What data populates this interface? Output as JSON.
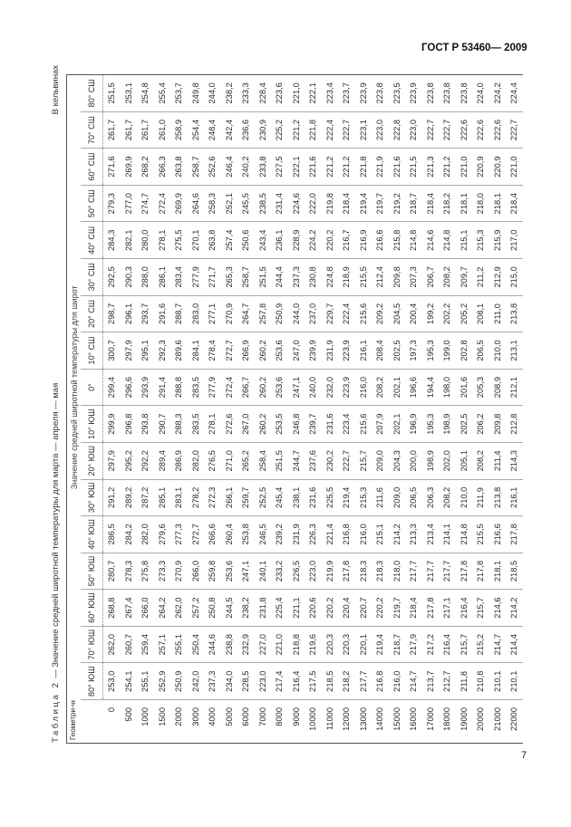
{
  "page": {
    "doc_id": "ГОСТ Р 53460— 2009",
    "page_number": "7"
  },
  "table": {
    "title_label": "Таблица 2",
    "title_text": " — Значение средней широтной температуры для марта — апреля — мая",
    "units": "В кельвинах",
    "height_header": "Геометри-ческая высота, м",
    "group_header": "Значение средней широтной температуры для широт",
    "columns": [
      "80° ЮШ",
      "70° ЮШ",
      "60° ЮШ",
      "50° ЮШ",
      "40° ЮШ",
      "30° ЮШ",
      "20° ЮШ",
      "10° ЮШ",
      "0°",
      "10° СШ",
      "20° СШ",
      "30° СШ",
      "40° СШ",
      "50° СШ",
      "60° СШ",
      "70° СШ",
      "80° СШ"
    ],
    "rows": [
      {
        "h": "0",
        "v": [
          "253,0",
          "262,0",
          "268,8",
          "280,7",
          "286,5",
          "291,2",
          "297,9",
          "299,9",
          "299,4",
          "300,7",
          "298,7",
          "292,5",
          "284,3",
          "279,3",
          "271,6",
          "261,7",
          "251,5"
        ]
      },
      {
        "h": "500",
        "v": [
          "254,1",
          "260,7",
          "267,4",
          "278,3",
          "284,2",
          "289,2",
          "295,2",
          "296,8",
          "296,6",
          "297,9",
          "296,1",
          "290,3",
          "282,1",
          "277,0",
          "269,9",
          "261,7",
          "253,1"
        ]
      },
      {
        "h": "1000",
        "v": [
          "255,1",
          "259,4",
          "266,0",
          "275,8",
          "282,0",
          "287,2",
          "292,2",
          "293,8",
          "293,9",
          "295,1",
          "293,7",
          "288,0",
          "280,0",
          "274,7",
          "268,2",
          "261,7",
          "254,8"
        ]
      },
      {
        "h": "1500",
        "v": [
          "252,9",
          "257,1",
          "264,2",
          "273,3",
          "279,6",
          "285,1",
          "289,4",
          "290,7",
          "291,4",
          "292,3",
          "291,6",
          "286,1",
          "278,1",
          "272,4",
          "266,3",
          "261,0",
          "255,4"
        ]
      },
      {
        "h": "2000",
        "v": [
          "250,9",
          "255,1",
          "262,0",
          "270,9",
          "277,3",
          "283,1",
          "286,9",
          "288,3",
          "288,8",
          "289,6",
          "288,7",
          "283,4",
          "275,5",
          "269,9",
          "263,8",
          "258,9",
          "253,7"
        ]
      },
      {
        "h": "3000",
        "v": [
          "242,0",
          "250,4",
          "257,2",
          "266,0",
          "272,7",
          "278,2",
          "282,0",
          "283,5",
          "283,5",
          "284,1",
          "283,0",
          "277,9",
          "270,1",
          "264,6",
          "258,7",
          "254,4",
          "249,8"
        ]
      },
      {
        "h": "4000",
        "v": [
          "237,3",
          "244,6",
          "250,8",
          "259,8",
          "266,6",
          "272,3",
          "276,5",
          "278,1",
          "277,9",
          "278,4",
          "277,1",
          "271,7",
          "263,8",
          "258,3",
          "252,6",
          "248,4",
          "244,0"
        ]
      },
      {
        "h": "5000",
        "v": [
          "234,0",
          "238,8",
          "244,5",
          "253,6",
          "260,4",
          "266,1",
          "271,0",
          "272,6",
          "272,4",
          "272,7",
          "270,9",
          "265,3",
          "257,4",
          "252,1",
          "246,4",
          "242,4",
          "238,2"
        ]
      },
      {
        "h": "6000",
        "v": [
          "228,5",
          "232,9",
          "238,2",
          "247,1",
          "253,8",
          "259,7",
          "265,2",
          "267,0",
          "266,7",
          "266,9",
          "264,7",
          "258,7",
          "250,6",
          "245,5",
          "240,2",
          "236,6",
          "233,3"
        ]
      },
      {
        "h": "7000",
        "v": [
          "223,0",
          "227,0",
          "231,8",
          "240,1",
          "246,5",
          "252,5",
          "258,4",
          "260,2",
          "260,2",
          "260,2",
          "257,8",
          "251,5",
          "243,4",
          "238,5",
          "233,8",
          "230,9",
          "228,4"
        ]
      },
      {
        "h": "8000",
        "v": [
          "217,4",
          "221,0",
          "225,4",
          "233,2",
          "239,2",
          "245,4",
          "251,5",
          "253,5",
          "253,6",
          "253,6",
          "250,9",
          "244,4",
          "236,1",
          "231,4",
          "227,5",
          "225,2",
          "223,6"
        ]
      },
      {
        "h": "9000",
        "v": [
          "216,4",
          "218,8",
          "221,1",
          "226,5",
          "231,9",
          "238,1",
          "244,7",
          "246,8",
          "247,1",
          "247,0",
          "244,0",
          "237,3",
          "228,9",
          "224,6",
          "222,1",
          "221,2",
          "221,0"
        ]
      },
      {
        "h": "10000",
        "v": [
          "217,5",
          "219,6",
          "220,6",
          "223,0",
          "226,3",
          "231,6",
          "237,6",
          "239,7",
          "240,0",
          "239,9",
          "237,0",
          "230,8",
          "224,2",
          "222,0",
          "221,6",
          "221,8",
          "222,1"
        ]
      },
      {
        "h": "11000",
        "v": [
          "218,5",
          "220,3",
          "220,2",
          "219,9",
          "221,4",
          "225,5",
          "230,2",
          "231,6",
          "232,0",
          "231,9",
          "229,7",
          "224,8",
          "220,2",
          "219,8",
          "221,2",
          "222,4",
          "223,4"
        ]
      },
      {
        "h": "12000",
        "v": [
          "218,2",
          "220,3",
          "220,4",
          "217,8",
          "216,8",
          "219,4",
          "222,7",
          "223,4",
          "223,9",
          "223,9",
          "222,4",
          "218,9",
          "216,7",
          "218,4",
          "221,2",
          "222,7",
          "223,7"
        ]
      },
      {
        "h": "13000",
        "v": [
          "217,7",
          "220,1",
          "220,7",
          "218,3",
          "216,0",
          "215,3",
          "215,7",
          "215,6",
          "216,0",
          "216,1",
          "215,6",
          "215,5",
          "216,9",
          "219,4",
          "221,8",
          "223,1",
          "223,9"
        ]
      },
      {
        "h": "14000",
        "v": [
          "216,8",
          "219,4",
          "220,2",
          "218,3",
          "215,1",
          "211,6",
          "209,0",
          "207,9",
          "208,2",
          "208,4",
          "209,2",
          "212,4",
          "216,6",
          "219,7",
          "221,9",
          "223,0",
          "223,8"
        ]
      },
      {
        "h": "15000",
        "v": [
          "216,0",
          "218,7",
          "219,7",
          "218,0",
          "214,2",
          "209,0",
          "204,3",
          "202,1",
          "202,1",
          "202,5",
          "204,5",
          "209,8",
          "215,8",
          "219,2",
          "221,6",
          "222,8",
          "223,5"
        ]
      },
      {
        "h": "16000",
        "v": [
          "214,7",
          "217,9",
          "218,4",
          "217,7",
          "213,3",
          "206,5",
          "200,0",
          "196,9",
          "196,6",
          "197,3",
          "200,4",
          "207,3",
          "214,8",
          "218,7",
          "221,5",
          "223,0",
          "223,9"
        ]
      },
      {
        "h": "17000",
        "v": [
          "213,7",
          "217,2",
          "217,8",
          "217,7",
          "213,4",
          "206,3",
          "198,9",
          "195,3",
          "194,4",
          "195,3",
          "199,2",
          "206,7",
          "214,6",
          "218,4",
          "221,3",
          "222,7",
          "223,8"
        ]
      },
      {
        "h": "18000",
        "v": [
          "212,7",
          "216,4",
          "217,1",
          "217,7",
          "214,1",
          "208,2",
          "202,0",
          "198,9",
          "198,0",
          "199,0",
          "202,2",
          "208,2",
          "214,8",
          "218,2",
          "221,2",
          "222,7",
          "223,8"
        ]
      },
      {
        "h": "19000",
        "v": [
          "211,8",
          "215,7",
          "216,4",
          "217,8",
          "214,8",
          "210,0",
          "205,1",
          "202,5",
          "201,6",
          "202,8",
          "205,2",
          "209,7",
          "215,1",
          "218,1",
          "221,0",
          "222,6",
          "223,8"
        ]
      },
      {
        "h": "20000",
        "v": [
          "210,8",
          "215,2",
          "215,7",
          "217,8",
          "215,5",
          "211,9",
          "208,2",
          "206,2",
          "205,3",
          "206,5",
          "208,1",
          "211,2",
          "215,3",
          "218,0",
          "220,9",
          "222,6",
          "224,0"
        ]
      },
      {
        "h": "21000",
        "v": [
          "210,1",
          "214,7",
          "214,6",
          "218,1",
          "216,6",
          "213,8",
          "211,4",
          "209,8",
          "208,9",
          "210,0",
          "211,0",
          "212,9",
          "215,9",
          "218,1",
          "220,9",
          "222,6",
          "224,2"
        ]
      },
      {
        "h": "22000",
        "v": [
          "210,1",
          "214,4",
          "214,2",
          "218,5",
          "217,8",
          "216,1",
          "214,3",
          "212,8",
          "212,1",
          "213,1",
          "213,8",
          "215,0",
          "217,0",
          "218,4",
          "221,0",
          "222,7",
          "224,4"
        ]
      }
    ]
  }
}
